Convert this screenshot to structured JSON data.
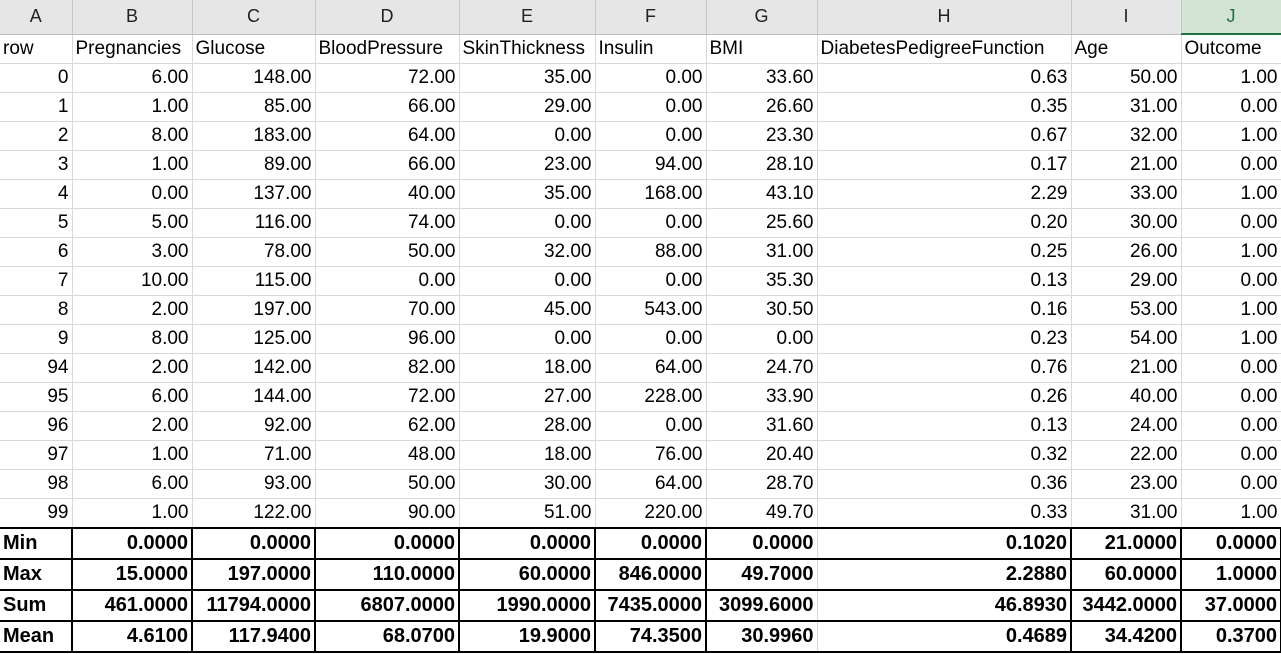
{
  "sheet": {
    "column_letters": [
      "A",
      "B",
      "C",
      "D",
      "E",
      "F",
      "G",
      "H",
      "I",
      "J"
    ],
    "selected_column": "J",
    "header_row": [
      "row",
      "Pregnancies",
      "Glucose",
      "BloodPressure",
      "SkinThickness",
      "Insulin",
      "BMI",
      "DiabetesPedigreeFunction",
      "Age",
      "Outcome"
    ],
    "rows": [
      [
        "0",
        "6.00",
        "148.00",
        "72.00",
        "35.00",
        "0.00",
        "33.60",
        "0.63",
        "50.00",
        "1.00"
      ],
      [
        "1",
        "1.00",
        "85.00",
        "66.00",
        "29.00",
        "0.00",
        "26.60",
        "0.35",
        "31.00",
        "0.00"
      ],
      [
        "2",
        "8.00",
        "183.00",
        "64.00",
        "0.00",
        "0.00",
        "23.30",
        "0.67",
        "32.00",
        "1.00"
      ],
      [
        "3",
        "1.00",
        "89.00",
        "66.00",
        "23.00",
        "94.00",
        "28.10",
        "0.17",
        "21.00",
        "0.00"
      ],
      [
        "4",
        "0.00",
        "137.00",
        "40.00",
        "35.00",
        "168.00",
        "43.10",
        "2.29",
        "33.00",
        "1.00"
      ],
      [
        "5",
        "5.00",
        "116.00",
        "74.00",
        "0.00",
        "0.00",
        "25.60",
        "0.20",
        "30.00",
        "0.00"
      ],
      [
        "6",
        "3.00",
        "78.00",
        "50.00",
        "32.00",
        "88.00",
        "31.00",
        "0.25",
        "26.00",
        "1.00"
      ],
      [
        "7",
        "10.00",
        "115.00",
        "0.00",
        "0.00",
        "0.00",
        "35.30",
        "0.13",
        "29.00",
        "0.00"
      ],
      [
        "8",
        "2.00",
        "197.00",
        "70.00",
        "45.00",
        "543.00",
        "30.50",
        "0.16",
        "53.00",
        "1.00"
      ],
      [
        "9",
        "8.00",
        "125.00",
        "96.00",
        "0.00",
        "0.00",
        "0.00",
        "0.23",
        "54.00",
        "1.00"
      ],
      [
        "94",
        "2.00",
        "142.00",
        "82.00",
        "18.00",
        "64.00",
        "24.70",
        "0.76",
        "21.00",
        "0.00"
      ],
      [
        "95",
        "6.00",
        "144.00",
        "72.00",
        "27.00",
        "228.00",
        "33.90",
        "0.26",
        "40.00",
        "0.00"
      ],
      [
        "96",
        "2.00",
        "92.00",
        "62.00",
        "28.00",
        "0.00",
        "31.60",
        "0.13",
        "24.00",
        "0.00"
      ],
      [
        "97",
        "1.00",
        "71.00",
        "48.00",
        "18.00",
        "76.00",
        "20.40",
        "0.32",
        "22.00",
        "0.00"
      ],
      [
        "98",
        "6.00",
        "93.00",
        "50.00",
        "30.00",
        "64.00",
        "28.70",
        "0.36",
        "23.00",
        "0.00"
      ],
      [
        "99",
        "1.00",
        "122.00",
        "90.00",
        "51.00",
        "220.00",
        "49.70",
        "0.33",
        "31.00",
        "1.00"
      ]
    ],
    "stats": [
      [
        "Min",
        "0.0000",
        "0.0000",
        "0.0000",
        "0.0000",
        "0.0000",
        "0.0000",
        "0.1020",
        "21.0000",
        "0.0000"
      ],
      [
        "Max",
        "15.0000",
        "197.0000",
        "110.0000",
        "60.0000",
        "846.0000",
        "49.7000",
        "2.2880",
        "60.0000",
        "1.0000"
      ],
      [
        "Sum",
        "461.0000",
        "11794.0000",
        "6807.0000",
        "1990.0000",
        "7435.0000",
        "3099.6000",
        "46.8930",
        "3442.0000",
        "37.0000"
      ],
      [
        "Mean",
        "4.6100",
        "117.9400",
        "68.0700",
        "19.9000",
        "74.3500",
        "30.9960",
        "0.4689",
        "34.4200",
        "0.3700"
      ]
    ]
  }
}
